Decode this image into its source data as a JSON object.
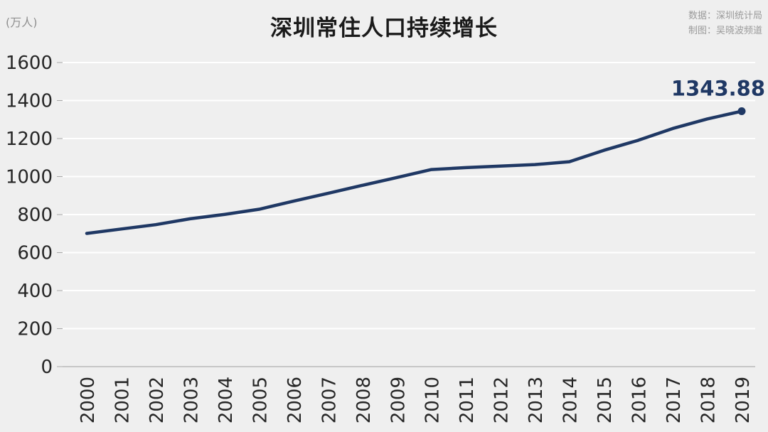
{
  "header": {
    "unit": "(万人)",
    "title": "深圳常住人口持续增长",
    "source_data": "数据：深圳统计局",
    "source_credit": "制图：吴晓波频道"
  },
  "chart_data": {
    "type": "line",
    "title": "深圳常住人口持续增长",
    "ylabel": "(万人)",
    "categories": [
      "2000",
      "2001",
      "2002",
      "2003",
      "2004",
      "2005",
      "2006",
      "2007",
      "2008",
      "2009",
      "2010",
      "2011",
      "2012",
      "2013",
      "2014",
      "2015",
      "2016",
      "2017",
      "2018",
      "2019"
    ],
    "series": [
      {
        "name": "深圳常住人口",
        "values": [
          701,
          724,
          747,
          778,
          801,
          828,
          871,
          912,
          954,
          995,
          1037,
          1047,
          1055,
          1063,
          1078,
          1138,
          1191,
          1253,
          1303,
          1343.88
        ]
      }
    ],
    "ylim": [
      0,
      1600
    ],
    "yticks": [
      0,
      200,
      400,
      600,
      800,
      1000,
      1200,
      1400,
      1600
    ],
    "grid": true,
    "legend": "none",
    "end_label": "1343.88",
    "colors": {
      "line": "#1f3864",
      "background": "#efefef",
      "grid": "#ffffff",
      "axis_text": "#262626",
      "axis_line": "#8c8c8c",
      "tick": "#a8a8a8",
      "muted_text": "#9a9a9a"
    }
  }
}
